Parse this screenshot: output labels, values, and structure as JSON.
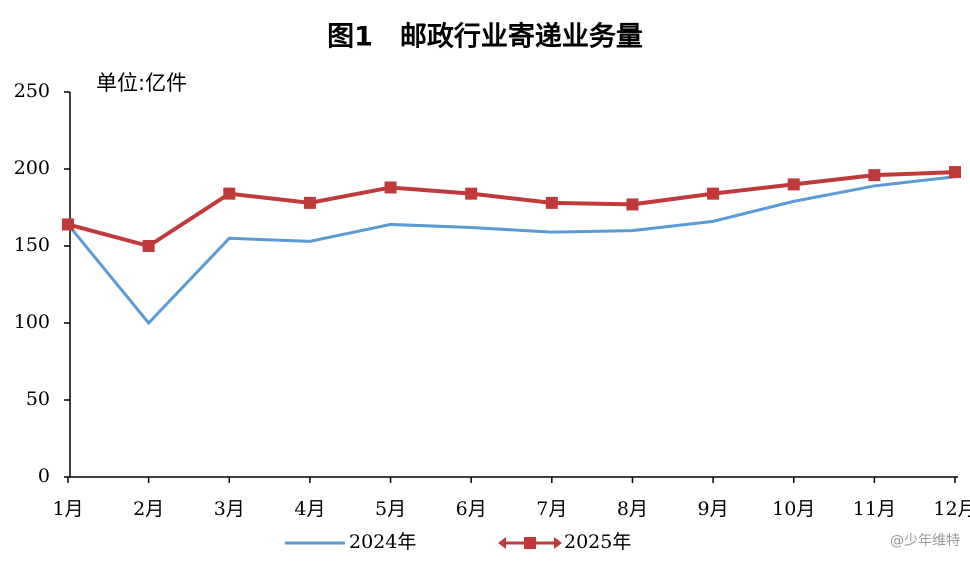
{
  "chart_data": {
    "type": "line",
    "title": "图1　邮政行业寄递业务量",
    "y_label": "单位:亿件",
    "categories": [
      "1月",
      "2月",
      "3月",
      "4月",
      "5月",
      "6月",
      "7月",
      "8月",
      "9月",
      "10月",
      "11月",
      "12月"
    ],
    "series": [
      {
        "name": "2024年",
        "color": "#5b9bd5",
        "marker": false,
        "values": [
          164,
          100,
          155,
          153,
          164,
          162,
          159,
          160,
          166,
          179,
          189,
          195
        ]
      },
      {
        "name": "2025年",
        "color": "#c0393b",
        "marker": true,
        "values": [
          164,
          150,
          184,
          178,
          188,
          184,
          178,
          177,
          184,
          190,
          196,
          198
        ]
      }
    ],
    "ylim": [
      0,
      250
    ],
    "yticks": [
      0,
      50,
      100,
      150,
      200,
      250
    ],
    "grid": false,
    "legend": "bottom"
  },
  "watermark": "@少年维特"
}
